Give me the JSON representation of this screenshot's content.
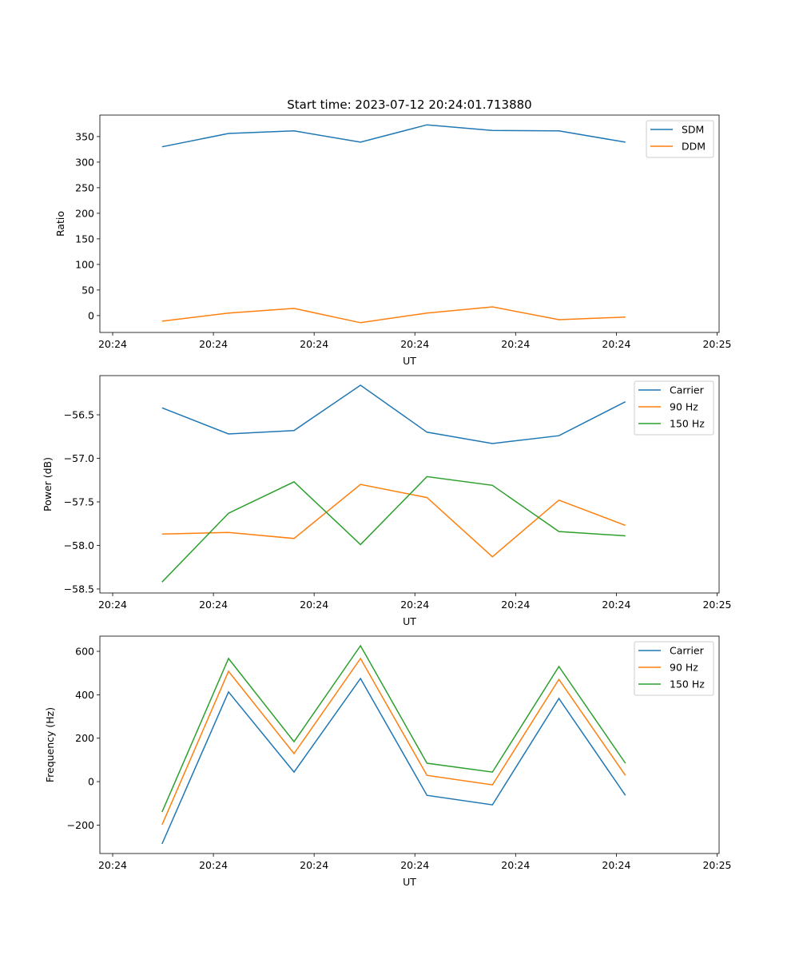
{
  "chart_data": [
    {
      "type": "line",
      "title": "Start time: 2023-07-12 20:24:01.713880",
      "xlabel": "UT",
      "ylabel": "Ratio",
      "x_unit": "seconds after 20:24:00",
      "x": [
        4.9,
        11.5,
        18.0,
        24.6,
        31.2,
        37.7,
        44.3,
        50.9
      ],
      "xlim": [
        -1.27,
        60.2
      ],
      "xticks": [
        0,
        10,
        20,
        30,
        40,
        50,
        60
      ],
      "xtick_labels": [
        "20:24",
        "20:24",
        "20:24",
        "20:24",
        "20:24",
        "20:24",
        "20:25"
      ],
      "ylim": [
        -33,
        392
      ],
      "yticks": [
        0,
        50,
        100,
        150,
        200,
        250,
        300,
        350
      ],
      "ytick_labels": [
        "0",
        "50",
        "100",
        "150",
        "200",
        "250",
        "300",
        "350"
      ],
      "legend": "top-right",
      "series": [
        {
          "name": "SDM",
          "color": "#1f77b4",
          "values": [
            330,
            356,
            361,
            339,
            373,
            362,
            361,
            339
          ]
        },
        {
          "name": "DDM",
          "color": "#ff7f0e",
          "values": [
            -11,
            5,
            14,
            -14,
            5,
            17,
            -8,
            -3
          ]
        }
      ]
    },
    {
      "type": "line",
      "title": "",
      "xlabel": "UT",
      "ylabel": "Power (dB)",
      "x": [
        4.9,
        11.5,
        18.0,
        24.6,
        31.2,
        37.7,
        44.3,
        50.9
      ],
      "xlim": [
        -1.27,
        60.2
      ],
      "xticks": [
        0,
        10,
        20,
        30,
        40,
        50,
        60
      ],
      "xtick_labels": [
        "20:24",
        "20:24",
        "20:24",
        "20:24",
        "20:24",
        "20:24",
        "20:25"
      ],
      "ylim": [
        -58.546,
        -56.05
      ],
      "yticks": [
        -58.5,
        -58.0,
        -57.5,
        -57.0,
        -56.5
      ],
      "ytick_labels": [
        "−58.5",
        "−58.0",
        "−57.5",
        "−57.0",
        "−56.5"
      ],
      "legend": "top-right",
      "series": [
        {
          "name": "Carrier",
          "color": "#1f77b4",
          "values": [
            -56.42,
            -56.72,
            -56.68,
            -56.16,
            -56.7,
            -56.83,
            -56.74,
            -56.35
          ]
        },
        {
          "name": "90 Hz",
          "color": "#ff7f0e",
          "values": [
            -57.87,
            -57.85,
            -57.92,
            -57.3,
            -57.45,
            -58.13,
            -57.48,
            -57.77
          ]
        },
        {
          "name": "150 Hz",
          "color": "#2ca02c",
          "values": [
            -58.42,
            -57.63,
            -57.27,
            -57.99,
            -57.21,
            -57.31,
            -57.84,
            -57.89
          ]
        }
      ]
    },
    {
      "type": "line",
      "title": "",
      "xlabel": "UT",
      "ylabel": "Frequency (Hz)",
      "x": [
        4.9,
        11.5,
        18.0,
        24.6,
        31.2,
        37.7,
        44.3,
        50.9
      ],
      "xlim": [
        -1.27,
        60.2
      ],
      "xticks": [
        0,
        10,
        20,
        30,
        40,
        50,
        60
      ],
      "xtick_labels": [
        "20:24",
        "20:24",
        "20:24",
        "20:24",
        "20:24",
        "20:24",
        "20:25"
      ],
      "ylim": [
        -331,
        670
      ],
      "yticks": [
        -200,
        0,
        200,
        400,
        600
      ],
      "ytick_labels": [
        "−200",
        "0",
        "200",
        "400",
        "600"
      ],
      "legend": "top-right",
      "series": [
        {
          "name": "Carrier",
          "color": "#1f77b4",
          "values": [
            -287,
            413,
            44,
            475,
            -63,
            -107,
            383,
            -63
          ]
        },
        {
          "name": "90 Hz",
          "color": "#ff7f0e",
          "values": [
            -199,
            508,
            129,
            567,
            29,
            -15,
            471,
            29
          ]
        },
        {
          "name": "150 Hz",
          "color": "#2ca02c",
          "values": [
            -140,
            567,
            184,
            626,
            85,
            44,
            530,
            85
          ]
        }
      ]
    }
  ]
}
